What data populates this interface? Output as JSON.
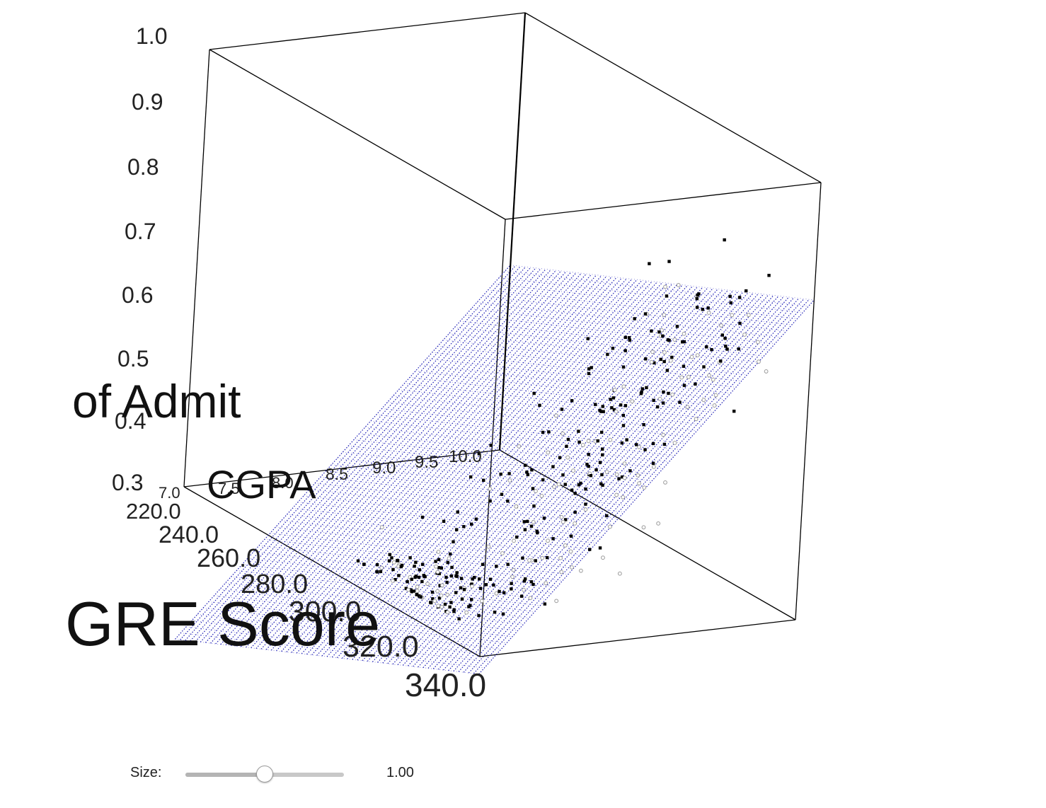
{
  "chart_data": {
    "type": "scatter",
    "subtype": "3d-scatter-with-regression-plane",
    "x_axis": {
      "label": "GRE Score",
      "ticks": [
        "220.0",
        "240.0",
        "260.0",
        "280.0",
        "300.0",
        "320.0",
        "340.0"
      ],
      "range": [
        220,
        340
      ]
    },
    "y_axis": {
      "label": "CGPA",
      "ticks": [
        "7.0",
        "7.5",
        "8.0",
        "8.5",
        "9.0",
        "9.5",
        "10.0"
      ],
      "range": [
        7.0,
        10.0
      ]
    },
    "z_axis": {
      "label": "of Admit",
      "ticks": [
        "0.3",
        "0.4",
        "0.5",
        "0.6",
        "0.7",
        "0.8",
        "0.9",
        "1.0"
      ],
      "range": [
        0.3,
        1.0
      ]
    },
    "plane": {
      "color": "#1a1ab4",
      "intercept": -1.6,
      "gre_coef": 0.0018,
      "cgpa_coef": 0.18
    },
    "points": {
      "count": 400,
      "filled_color": "#000000",
      "hollow_color": "#9a9a9a"
    },
    "grid": false,
    "legend": "none"
  },
  "controls": {
    "size_label": "Size:",
    "size_value": "1.00",
    "size_fraction": 0.5
  }
}
